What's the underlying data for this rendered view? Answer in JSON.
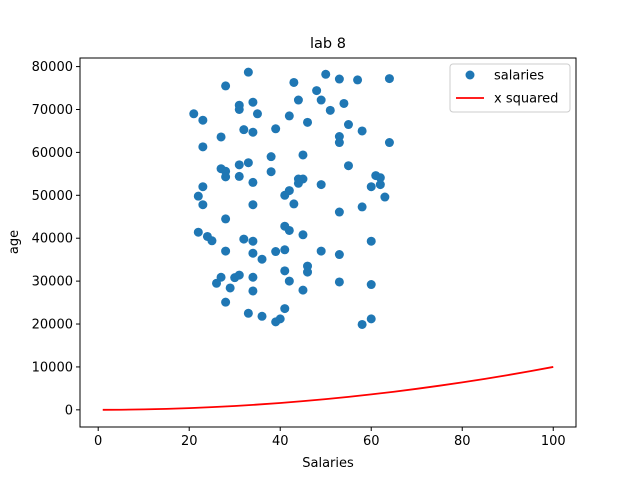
{
  "chart_data": {
    "type": "scatter",
    "title": "lab 8",
    "xlabel": "Salaries",
    "ylabel": "age",
    "xlim": [
      -4,
      105
    ],
    "ylim": [
      -4000,
      82000
    ],
    "xticks": [
      0,
      20,
      40,
      60,
      80,
      100
    ],
    "yticks": [
      0,
      10000,
      20000,
      30000,
      40000,
      50000,
      60000,
      70000,
      80000
    ],
    "grid": false,
    "legend_position": "top-right",
    "series": [
      {
        "name": "salaries",
        "kind": "scatter",
        "color": "#1f77b4",
        "points": [
          [
            21,
            69000
          ],
          [
            23,
            67500
          ],
          [
            28,
            75500
          ],
          [
            31,
            71000
          ],
          [
            31,
            70000
          ],
          [
            34,
            71700
          ],
          [
            33,
            78700
          ],
          [
            35,
            69000
          ],
          [
            43,
            76300
          ],
          [
            44,
            72200
          ],
          [
            42,
            68500
          ],
          [
            48,
            74400
          ],
          [
            50,
            78200
          ],
          [
            49,
            72200
          ],
          [
            51,
            69800
          ],
          [
            53,
            77100
          ],
          [
            57,
            76900
          ],
          [
            64,
            77200
          ],
          [
            54,
            71400
          ],
          [
            55,
            66500
          ],
          [
            58,
            65000
          ],
          [
            46,
            67000
          ],
          [
            32,
            65300
          ],
          [
            34,
            64700
          ],
          [
            39,
            65500
          ],
          [
            53,
            63700
          ],
          [
            53,
            62300
          ],
          [
            64,
            62300
          ],
          [
            23,
            61300
          ],
          [
            27,
            63600
          ],
          [
            45,
            59400
          ],
          [
            38,
            59000
          ],
          [
            55,
            56900
          ],
          [
            31,
            57100
          ],
          [
            33,
            57600
          ],
          [
            27,
            56200
          ],
          [
            28,
            55600
          ],
          [
            38,
            55500
          ],
          [
            28,
            54300
          ],
          [
            31,
            54400
          ],
          [
            34,
            53000
          ],
          [
            44,
            53800
          ],
          [
            45,
            53800
          ],
          [
            44,
            52800
          ],
          [
            49,
            52500
          ],
          [
            42,
            51100
          ],
          [
            61,
            54600
          ],
          [
            62,
            54100
          ],
          [
            62,
            52500
          ],
          [
            60,
            52000
          ],
          [
            23,
            52000
          ],
          [
            22,
            49800
          ],
          [
            23,
            47800
          ],
          [
            41,
            50000
          ],
          [
            43,
            48000
          ],
          [
            34,
            47800
          ],
          [
            58,
            47300
          ],
          [
            53,
            46100
          ],
          [
            63,
            49600
          ],
          [
            28,
            44500
          ],
          [
            41,
            42800
          ],
          [
            42,
            41800
          ],
          [
            45,
            40800
          ],
          [
            22,
            41400
          ],
          [
            24,
            40400
          ],
          [
            25,
            39400
          ],
          [
            32,
            39800
          ],
          [
            34,
            39300
          ],
          [
            60,
            39300
          ],
          [
            28,
            37000
          ],
          [
            34,
            36500
          ],
          [
            39,
            36900
          ],
          [
            41,
            37300
          ],
          [
            36,
            35100
          ],
          [
            49,
            37000
          ],
          [
            53,
            36200
          ],
          [
            46,
            33500
          ],
          [
            46,
            32100
          ],
          [
            41,
            32400
          ],
          [
            27,
            30900
          ],
          [
            30,
            30800
          ],
          [
            31,
            31400
          ],
          [
            34,
            30900
          ],
          [
            42,
            30000
          ],
          [
            26,
            29500
          ],
          [
            29,
            28400
          ],
          [
            34,
            27700
          ],
          [
            45,
            27900
          ],
          [
            53,
            29800
          ],
          [
            60,
            29200
          ],
          [
            28,
            25100
          ],
          [
            33,
            22500
          ],
          [
            36,
            21800
          ],
          [
            41,
            23600
          ],
          [
            40,
            21200
          ],
          [
            39,
            20500
          ],
          [
            58,
            19900
          ],
          [
            60,
            21200
          ]
        ]
      },
      {
        "name": "x squared",
        "kind": "line",
        "color": "#ff0000",
        "x": [
          1,
          5,
          10,
          15,
          20,
          25,
          30,
          35,
          40,
          45,
          50,
          55,
          60,
          65,
          70,
          75,
          80,
          85,
          90,
          95,
          100
        ],
        "y": [
          1,
          25,
          100,
          225,
          400,
          625,
          900,
          1225,
          1600,
          2025,
          2500,
          3025,
          3600,
          4225,
          4900,
          5625,
          6400,
          7225,
          8100,
          9025,
          10000
        ]
      }
    ]
  }
}
